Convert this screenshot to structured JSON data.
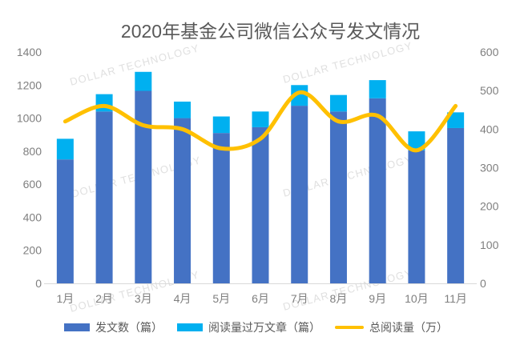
{
  "title": "2020年基金公司微信公众号发文情况",
  "watermark": {
    "text": "DOLLAR TECHNOLOGY",
    "color": "#e0e0e0"
  },
  "chart_data": {
    "type": "bar",
    "subtype": "stacked-bars-with-smooth-line-dual-axis",
    "title": "2020年基金公司微信公众号发文情况",
    "categories": [
      "1月",
      "2月",
      "3月",
      "4月",
      "5月",
      "6月",
      "7月",
      "8月",
      "9月",
      "10月",
      "11月"
    ],
    "series": [
      {
        "name": "发文数（篇）",
        "type": "bar",
        "stack": "total",
        "axis": "left",
        "color": "#4472c4",
        "values": [
          750,
          1040,
          1165,
          1000,
          910,
          945,
          1075,
          1040,
          1120,
          805,
          940
        ]
      },
      {
        "name": "阅读量过万文章（篇）",
        "type": "bar",
        "stack": "total",
        "axis": "left",
        "color": "#00b0f0",
        "values": [
          125,
          105,
          115,
          100,
          100,
          95,
          125,
          100,
          110,
          115,
          95
        ]
      },
      {
        "name": "总阅读量（万）",
        "type": "line",
        "smooth": true,
        "axis": "right",
        "color": "#ffc000",
        "values": [
          420,
          460,
          410,
          400,
          350,
          375,
          495,
          420,
          435,
          345,
          460
        ]
      }
    ],
    "stack_totals": [
      875,
      1145,
      1280,
      1100,
      1010,
      1040,
      1200,
      1140,
      1230,
      920,
      1035
    ],
    "axes": {
      "left": {
        "min": 0,
        "max": 1400,
        "step": 200,
        "ticks": [
          0,
          200,
          400,
          600,
          800,
          1000,
          1200,
          1400
        ]
      },
      "right": {
        "min": 0,
        "max": 600,
        "step": 100,
        "ticks": [
          0,
          100,
          200,
          300,
          400,
          500,
          600
        ]
      }
    },
    "grid": false,
    "legend_position": "bottom",
    "axis_line_color": "#d9d9d9",
    "tick_label_color": "#7f7f7f",
    "title_color": "#595959"
  }
}
